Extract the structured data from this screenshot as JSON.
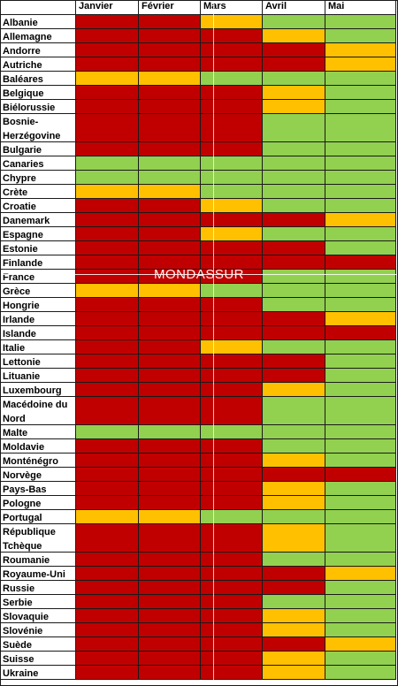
{
  "watermark": "MONDASSUR",
  "colors": {
    "r": "#c00000",
    "o": "#ffc000",
    "g": "#92d050"
  },
  "chart_data": {
    "type": "table",
    "columns": [
      "Janvier",
      "Février",
      "Mars",
      "Avril",
      "Mai"
    ],
    "rows": [
      {
        "country": "Albanie",
        "lines": 1,
        "values": [
          "r",
          "r",
          "o",
          "g",
          "g"
        ]
      },
      {
        "country": "Allemagne",
        "lines": 1,
        "values": [
          "r",
          "r",
          "r",
          "o",
          "g"
        ]
      },
      {
        "country": "Andorre",
        "lines": 1,
        "values": [
          "r",
          "r",
          "r",
          "r",
          "o"
        ]
      },
      {
        "country": "Autriche",
        "lines": 1,
        "values": [
          "r",
          "r",
          "r",
          "r",
          "o"
        ]
      },
      {
        "country": "Baléares",
        "lines": 1,
        "values": [
          "o",
          "o",
          "g",
          "g",
          "g"
        ]
      },
      {
        "country": "Belgique",
        "lines": 1,
        "values": [
          "r",
          "r",
          "r",
          "o",
          "g"
        ]
      },
      {
        "country": "Biélorussie",
        "lines": 1,
        "values": [
          "r",
          "r",
          "r",
          "o",
          "g"
        ]
      },
      {
        "country": "Bosnie-Herzégovine",
        "lines": 2,
        "values": [
          "r",
          "r",
          "r",
          "g",
          "g"
        ]
      },
      {
        "country": "Bulgarie",
        "lines": 1,
        "values": [
          "r",
          "r",
          "r",
          "g",
          "g"
        ]
      },
      {
        "country": "Canaries",
        "lines": 1,
        "values": [
          "g",
          "g",
          "g",
          "g",
          "g"
        ]
      },
      {
        "country": "Chypre",
        "lines": 1,
        "values": [
          "g",
          "g",
          "g",
          "g",
          "g"
        ]
      },
      {
        "country": "Crète",
        "lines": 1,
        "values": [
          "o",
          "o",
          "g",
          "g",
          "g"
        ]
      },
      {
        "country": "Croatie",
        "lines": 1,
        "values": [
          "r",
          "r",
          "o",
          "g",
          "g"
        ]
      },
      {
        "country": "Danemark",
        "lines": 1,
        "values": [
          "r",
          "r",
          "r",
          "r",
          "o"
        ]
      },
      {
        "country": "Espagne",
        "lines": 1,
        "values": [
          "r",
          "r",
          "o",
          "g",
          "g"
        ]
      },
      {
        "country": "Estonie",
        "lines": 1,
        "values": [
          "r",
          "r",
          "r",
          "r",
          "g"
        ]
      },
      {
        "country": "Finlande",
        "lines": 1,
        "values": [
          "r",
          "r",
          "r",
          "r",
          "r"
        ]
      },
      {
        "country": "France",
        "lines": 1,
        "values": [
          "r",
          "r",
          "r",
          "g",
          "g"
        ]
      },
      {
        "country": "Grèce",
        "lines": 1,
        "values": [
          "o",
          "o",
          "g",
          "g",
          "g"
        ]
      },
      {
        "country": "Hongrie",
        "lines": 1,
        "values": [
          "r",
          "r",
          "r",
          "g",
          "g"
        ]
      },
      {
        "country": "Irlande",
        "lines": 1,
        "values": [
          "r",
          "r",
          "r",
          "r",
          "o"
        ]
      },
      {
        "country": "Islande",
        "lines": 1,
        "values": [
          "r",
          "r",
          "r",
          "r",
          "r"
        ]
      },
      {
        "country": "Italie",
        "lines": 1,
        "values": [
          "r",
          "r",
          "o",
          "g",
          "g"
        ]
      },
      {
        "country": "Lettonie",
        "lines": 1,
        "values": [
          "r",
          "r",
          "r",
          "r",
          "g"
        ]
      },
      {
        "country": "Lituanie",
        "lines": 1,
        "values": [
          "r",
          "r",
          "r",
          "r",
          "g"
        ]
      },
      {
        "country": "Luxembourg",
        "lines": 1,
        "values": [
          "r",
          "r",
          "r",
          "o",
          "g"
        ]
      },
      {
        "country": "Macédoine du Nord",
        "lines": 2,
        "values": [
          "r",
          "r",
          "r",
          "g",
          "g"
        ]
      },
      {
        "country": "Malte",
        "lines": 1,
        "values": [
          "g",
          "g",
          "g",
          "g",
          "g"
        ]
      },
      {
        "country": "Moldavie",
        "lines": 1,
        "values": [
          "r",
          "r",
          "r",
          "g",
          "g"
        ]
      },
      {
        "country": "Monténégro",
        "lines": 1,
        "values": [
          "r",
          "r",
          "r",
          "o",
          "g"
        ]
      },
      {
        "country": "Norvège",
        "lines": 1,
        "values": [
          "r",
          "r",
          "r",
          "r",
          "r"
        ]
      },
      {
        "country": "Pays-Bas",
        "lines": 1,
        "values": [
          "r",
          "r",
          "r",
          "o",
          "g"
        ]
      },
      {
        "country": "Pologne",
        "lines": 1,
        "values": [
          "r",
          "r",
          "r",
          "o",
          "g"
        ]
      },
      {
        "country": "Portugal",
        "lines": 1,
        "values": [
          "o",
          "o",
          "g",
          "g",
          "g"
        ]
      },
      {
        "country": "République Tchèque",
        "lines": 2,
        "values": [
          "r",
          "r",
          "r",
          "o",
          "g"
        ]
      },
      {
        "country": "Roumanie",
        "lines": 1,
        "values": [
          "r",
          "r",
          "r",
          "g",
          "g"
        ]
      },
      {
        "country": "Royaume-Uni",
        "lines": 1,
        "values": [
          "r",
          "r",
          "r",
          "r",
          "o"
        ]
      },
      {
        "country": "Russie",
        "lines": 1,
        "values": [
          "r",
          "r",
          "r",
          "r",
          "g"
        ]
      },
      {
        "country": "Serbie",
        "lines": 1,
        "values": [
          "r",
          "r",
          "r",
          "g",
          "g"
        ]
      },
      {
        "country": "Slovaquie",
        "lines": 1,
        "values": [
          "r",
          "r",
          "r",
          "o",
          "g"
        ]
      },
      {
        "country": "Slovénie",
        "lines": 1,
        "values": [
          "r",
          "r",
          "r",
          "o",
          "g"
        ]
      },
      {
        "country": "Suède",
        "lines": 1,
        "values": [
          "r",
          "r",
          "r",
          "r",
          "o"
        ]
      },
      {
        "country": "Suisse",
        "lines": 1,
        "values": [
          "r",
          "r",
          "r",
          "o",
          "g"
        ]
      },
      {
        "country": "Ukraine",
        "lines": 1,
        "values": [
          "r",
          "r",
          "r",
          "o",
          "g"
        ]
      }
    ]
  }
}
